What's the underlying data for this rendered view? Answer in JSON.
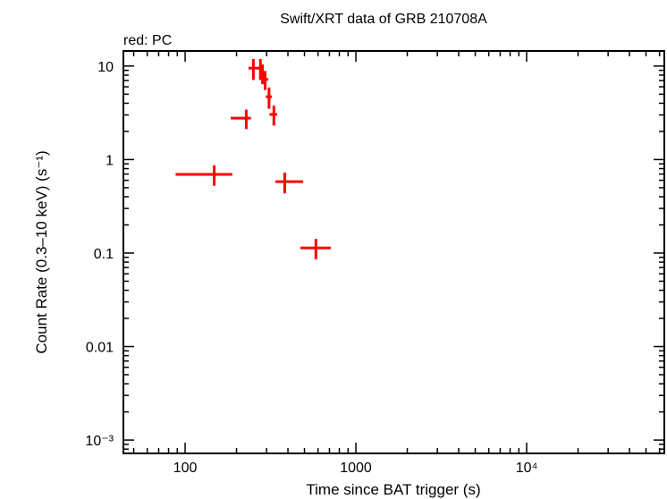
{
  "chart_data": {
    "type": "scatter",
    "title": "Swift/XRT data of GRB 210708A",
    "subtitle": "red: PC",
    "xlabel": "Time since BAT trigger (s)",
    "ylabel": "Count Rate (0.3–10 keV) (s⁻¹)",
    "xscale": "log",
    "yscale": "log",
    "xlim": [
      43.5,
      64000
    ],
    "ylim": [
      0.00072,
      14.5
    ],
    "grid": false,
    "x_ticks": [
      {
        "v": 100,
        "label": "100"
      },
      {
        "v": 1000,
        "label": "1000"
      },
      {
        "v": 10000,
        "label": "10⁴"
      }
    ],
    "y_ticks": [
      {
        "v": 10,
        "label": "10"
      },
      {
        "v": 1,
        "label": "1"
      },
      {
        "v": 0.1,
        "label": "0.1"
      },
      {
        "v": 0.01,
        "label": "0.01"
      },
      {
        "v": 0.001,
        "label": "10⁻³"
      }
    ],
    "series": [
      {
        "name": "PC",
        "color": "#ff0000",
        "points": [
          {
            "x": 148,
            "xlo": 88,
            "xhi": 189,
            "y": 0.695,
            "yerr": 0.17
          },
          {
            "x": 228,
            "xlo": 185,
            "xhi": 243,
            "y": 2.77,
            "yerr": 0.65
          },
          {
            "x": 251,
            "xlo": 235,
            "xhi": 279,
            "y": 9.5,
            "yerr": 2.4
          },
          {
            "x": 276,
            "xlo": 270,
            "xhi": 285,
            "y": 9.5,
            "yerr": 2.4
          },
          {
            "x": 284,
            "xlo": 280,
            "xhi": 288,
            "y": 8.4,
            "yerr": 2.0
          },
          {
            "x": 294,
            "xlo": 281,
            "xhi": 307,
            "y": 7.2,
            "yerr": 1.65
          },
          {
            "x": 310,
            "xlo": 297,
            "xhi": 322,
            "y": 4.7,
            "yerr": 1.2
          },
          {
            "x": 331,
            "xlo": 312,
            "xhi": 346,
            "y": 3.04,
            "yerr": 0.73
          },
          {
            "x": 383,
            "xlo": 338,
            "xhi": 491,
            "y": 0.58,
            "yerr": 0.145
          },
          {
            "x": 583,
            "xlo": 473,
            "xhi": 713,
            "y": 0.1135,
            "yerr": 0.028
          }
        ]
      }
    ]
  }
}
